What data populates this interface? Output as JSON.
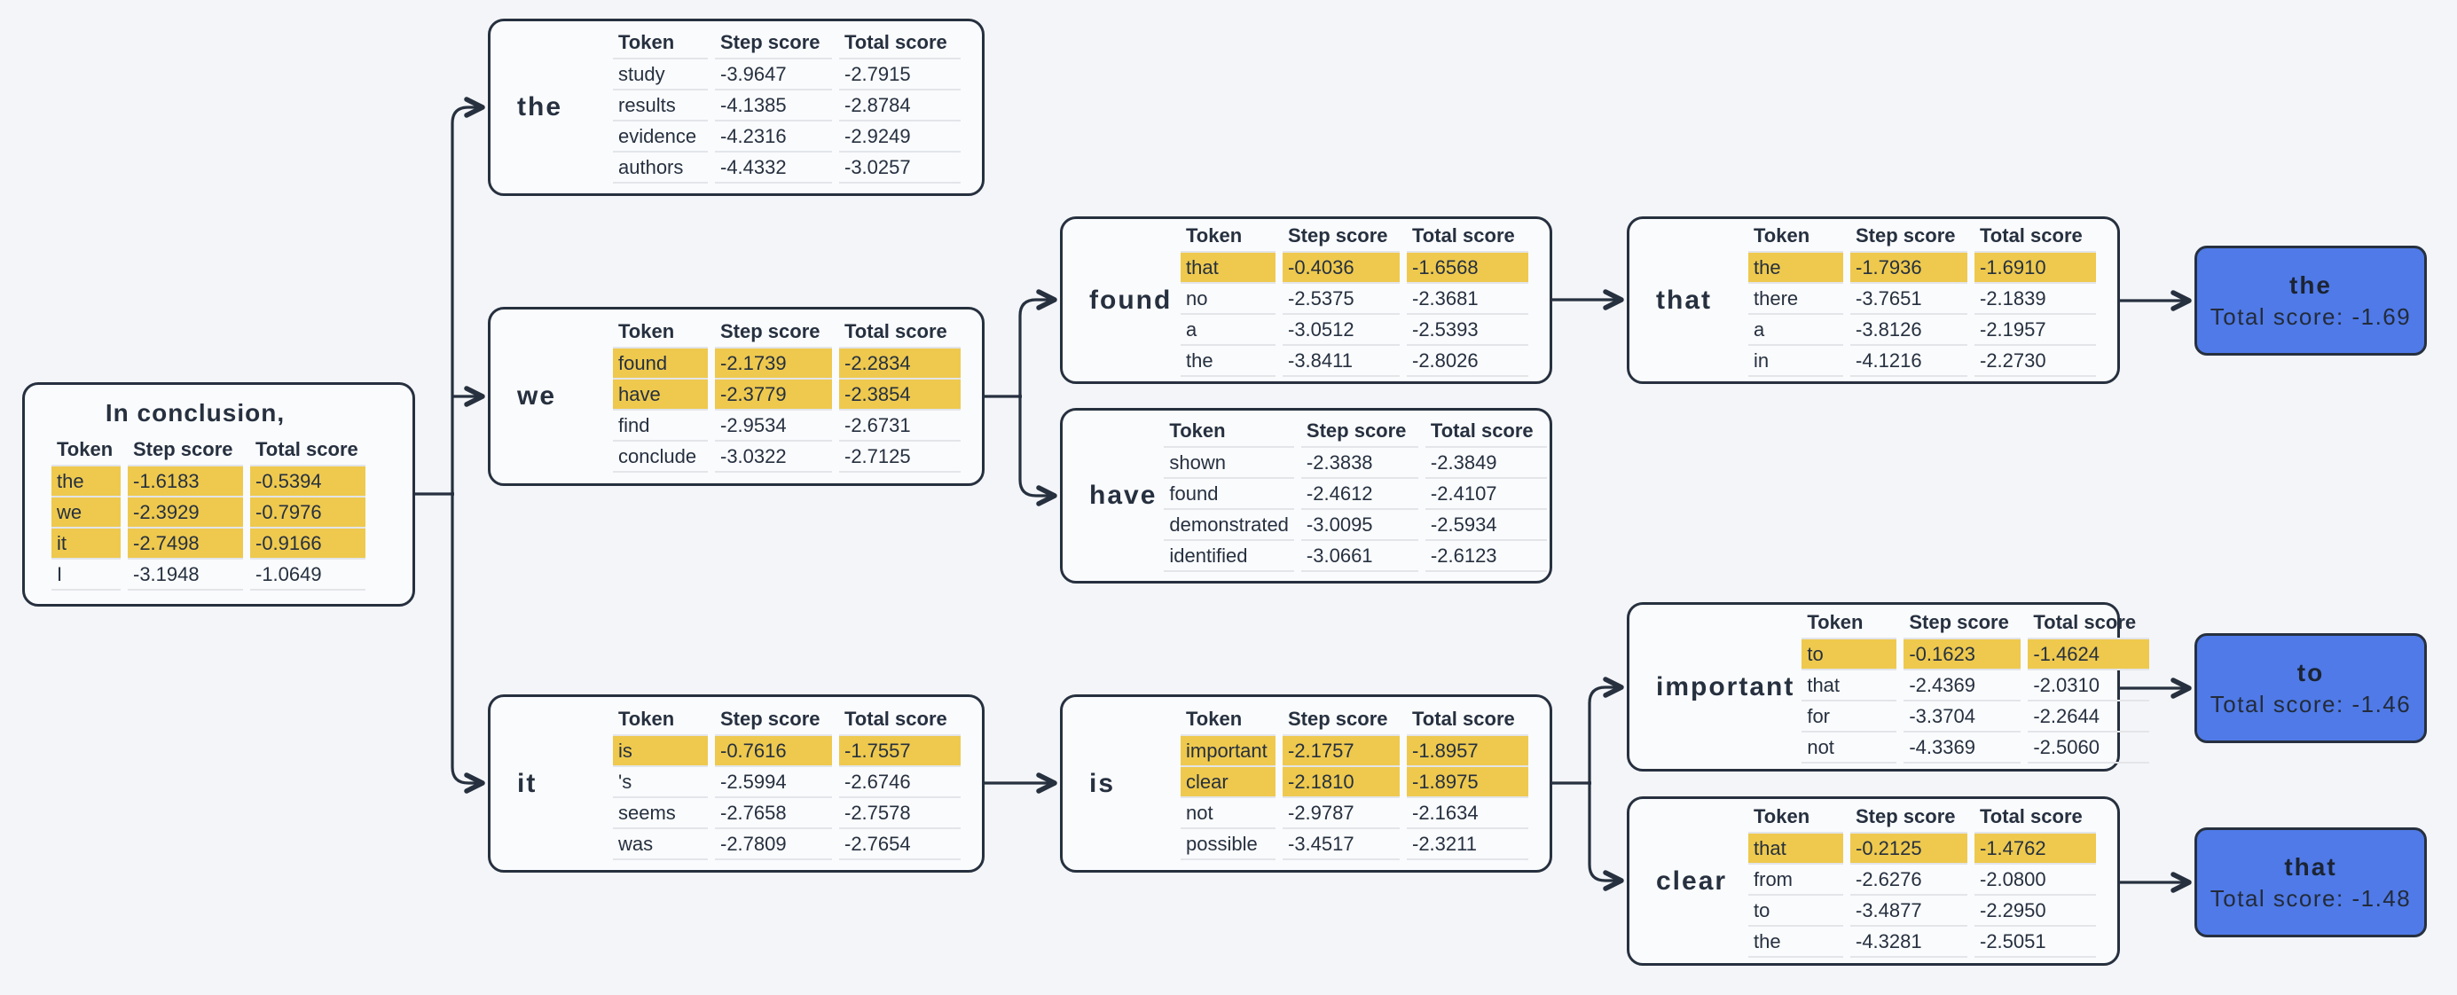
{
  "headers": [
    "Token",
    "Step score",
    "Total score"
  ],
  "nodes": {
    "root": {
      "title": "In conclusion,",
      "rows": [
        {
          "token": "the",
          "step": "-1.6183",
          "total": "-0.5394",
          "selected": true
        },
        {
          "token": "we",
          "step": "-2.3929",
          "total": "-0.7976",
          "selected": true
        },
        {
          "token": "it",
          "step": "-2.7498",
          "total": "-0.9166",
          "selected": true
        },
        {
          "token": "I",
          "step": "-3.1948",
          "total": "-1.0649",
          "selected": false
        }
      ]
    },
    "the": {
      "label": "the",
      "rows": [
        {
          "token": "study",
          "step": "-3.9647",
          "total": "-2.7915",
          "selected": false
        },
        {
          "token": "results",
          "step": "-4.1385",
          "total": "-2.8784",
          "selected": false
        },
        {
          "token": "evidence",
          "step": "-4.2316",
          "total": "-2.9249",
          "selected": false
        },
        {
          "token": "authors",
          "step": "-4.4332",
          "total": "-3.0257",
          "selected": false
        }
      ]
    },
    "we": {
      "label": "we",
      "rows": [
        {
          "token": "found",
          "step": "-2.1739",
          "total": "-2.2834",
          "selected": true
        },
        {
          "token": "have",
          "step": "-2.3779",
          "total": "-2.3854",
          "selected": true
        },
        {
          "token": "find",
          "step": "-2.9534",
          "total": "-2.6731",
          "selected": false
        },
        {
          "token": "conclude",
          "step": "-3.0322",
          "total": "-2.7125",
          "selected": false
        }
      ]
    },
    "it": {
      "label": "it",
      "rows": [
        {
          "token": "is",
          "step": "-0.7616",
          "total": "-1.7557",
          "selected": true
        },
        {
          "token": "'s",
          "step": "-2.5994",
          "total": "-2.6746",
          "selected": false
        },
        {
          "token": "seems",
          "step": "-2.7658",
          "total": "-2.7578",
          "selected": false
        },
        {
          "token": "was",
          "step": "-2.7809",
          "total": "-2.7654",
          "selected": false
        }
      ]
    },
    "found": {
      "label": "found",
      "rows": [
        {
          "token": "that",
          "step": "-0.4036",
          "total": "-1.6568",
          "selected": true
        },
        {
          "token": "no",
          "step": "-2.5375",
          "total": "-2.3681",
          "selected": false
        },
        {
          "token": "a",
          "step": "-3.0512",
          "total": "-2.5393",
          "selected": false
        },
        {
          "token": "the",
          "step": "-3.8411",
          "total": "-2.8026",
          "selected": false
        }
      ]
    },
    "have": {
      "label": "have",
      "rows": [
        {
          "token": "shown",
          "step": "-2.3838",
          "total": "-2.3849",
          "selected": false
        },
        {
          "token": "found",
          "step": "-2.4612",
          "total": "-2.4107",
          "selected": false
        },
        {
          "token": "demonstrated",
          "step": "-3.0095",
          "total": "-2.5934",
          "selected": false
        },
        {
          "token": "identified",
          "step": "-3.0661",
          "total": "-2.6123",
          "selected": false
        }
      ]
    },
    "that": {
      "label": "that",
      "rows": [
        {
          "token": "the",
          "step": "-1.7936",
          "total": "-1.6910",
          "selected": true
        },
        {
          "token": "there",
          "step": "-3.7651",
          "total": "-2.1839",
          "selected": false
        },
        {
          "token": "a",
          "step": "-3.8126",
          "total": "-2.1957",
          "selected": false
        },
        {
          "token": "in",
          "step": "-4.1216",
          "total": "-2.2730",
          "selected": false
        }
      ]
    },
    "is": {
      "label": "is",
      "rows": [
        {
          "token": "important",
          "step": "-2.1757",
          "total": "-1.8957",
          "selected": true
        },
        {
          "token": "clear",
          "step": "-2.1810",
          "total": "-1.8975",
          "selected": true
        },
        {
          "token": "not",
          "step": "-2.9787",
          "total": "-2.1634",
          "selected": false
        },
        {
          "token": "possible",
          "step": "-3.4517",
          "total": "-2.3211",
          "selected": false
        }
      ]
    },
    "important": {
      "label": "important",
      "rows": [
        {
          "token": "to",
          "step": "-0.1623",
          "total": "-1.4624",
          "selected": true
        },
        {
          "token": "that",
          "step": "-2.4369",
          "total": "-2.0310",
          "selected": false
        },
        {
          "token": "for",
          "step": "-3.3704",
          "total": "-2.2644",
          "selected": false
        },
        {
          "token": "not",
          "step": "-4.3369",
          "total": "-2.5060",
          "selected": false
        }
      ]
    },
    "clear": {
      "label": "clear",
      "rows": [
        {
          "token": "that",
          "step": "-0.2125",
          "total": "-1.4762",
          "selected": true
        },
        {
          "token": "from",
          "step": "-2.6276",
          "total": "-2.0800",
          "selected": false
        },
        {
          "token": "to",
          "step": "-3.4877",
          "total": "-2.2950",
          "selected": false
        },
        {
          "token": "the",
          "step": "-4.3281",
          "total": "-2.5051",
          "selected": false
        }
      ]
    }
  },
  "results": {
    "the": {
      "label": "the",
      "score_label": "Total score: -1.69"
    },
    "to": {
      "label": "to",
      "score_label": "Total score: -1.46"
    },
    "that": {
      "label": "that",
      "score_label": "Total score: -1.48"
    }
  },
  "colors": {
    "background": "#f4f5f8",
    "node_fill": "#fafbfd",
    "line": "#26303f",
    "highlight": "#eec94e",
    "result_fill": "#4f7ae8",
    "text": "#26303f",
    "separator": "#e3e5e9"
  }
}
